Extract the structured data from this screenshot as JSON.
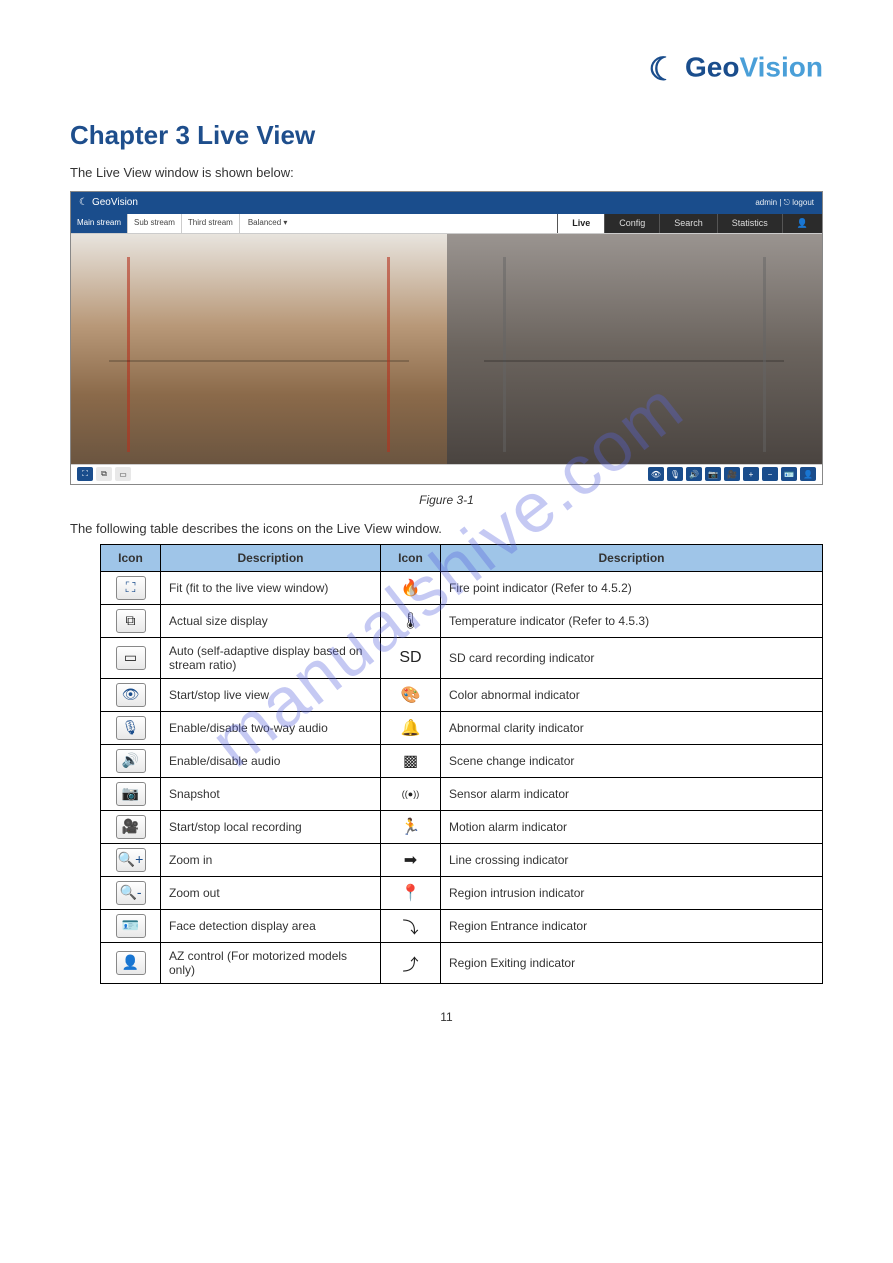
{
  "brand": {
    "geo": "Geo",
    "vision": "Vision",
    "glyph": "☾"
  },
  "chapter_title": "Chapter 3  Live View",
  "intro_text": "The Live View window is shown below:",
  "figure_caption": "Figure 3-1",
  "table_intro": "The following table describes the icons on the Live View window.",
  "screenshot": {
    "titlebar_brand": "GeoVision",
    "titlebar_right": "admin  |  ⎋  logout",
    "stream_tabs": [
      "Main stream",
      "Sub stream",
      "Third stream"
    ],
    "balanced": "Balanced ▾",
    "nav_tabs": [
      "Live",
      "Config",
      "Search",
      "Statistics"
    ],
    "person_icon": "👤"
  },
  "table": {
    "headers": [
      "Icon",
      "Description",
      "Icon",
      "Description"
    ],
    "rows": [
      {
        "icon1_glyph": "⛶",
        "icon1_class": "",
        "desc1": "Fit (fit to the live view window)",
        "icon2_glyph": "🔥",
        "icon2_class": "plain",
        "desc2": "Fire point indicator (Refer to 4.5.2)"
      },
      {
        "icon1_glyph": "⧉",
        "icon1_class": "dark",
        "desc1": "Actual size display",
        "icon2_glyph": "🌡",
        "icon2_class": "plain",
        "desc2": "Temperature indicator (Refer to 4.5.3)"
      },
      {
        "icon1_glyph": "▭",
        "icon1_class": "dark",
        "desc1": "Auto (self-adaptive display based on stream ratio)",
        "icon2_glyph": "SD",
        "icon2_class": "plain",
        "desc2": "SD card recording indicator"
      },
      {
        "icon1_glyph": "👁",
        "icon1_class": "",
        "desc1": "Start/stop live view",
        "icon2_glyph": "🎨",
        "icon2_class": "plain",
        "desc2": "Color abnormal indicator"
      },
      {
        "icon1_glyph": "🎙",
        "icon1_class": "",
        "desc1": "Enable/disable two-way audio",
        "icon2_glyph": "🔔",
        "icon2_class": "plain",
        "desc2": "Abnormal clarity indicator"
      },
      {
        "icon1_glyph": "🔊",
        "icon1_class": "",
        "desc1": "Enable/disable audio",
        "icon2_glyph": "▩",
        "icon2_class": "plain",
        "desc2": "Scene change indicator"
      },
      {
        "icon1_glyph": "📷",
        "icon1_class": "",
        "desc1": "Snapshot",
        "icon2_glyph": "((●))",
        "icon2_class": "plain",
        "desc2": "Sensor alarm indicator"
      },
      {
        "icon1_glyph": "🎥",
        "icon1_class": "",
        "desc1": "Start/stop local recording",
        "icon2_glyph": "🏃",
        "icon2_class": "plain",
        "desc2": "Motion alarm indicator"
      },
      {
        "icon1_glyph": "🔍+",
        "icon1_class": "",
        "desc1": "Zoom in",
        "icon2_glyph": "➡",
        "icon2_class": "plain",
        "desc2": "Line crossing indicator"
      },
      {
        "icon1_glyph": "🔍-",
        "icon1_class": "",
        "desc1": "Zoom out",
        "icon2_glyph": "📍",
        "icon2_class": "plain",
        "desc2": "Region intrusion indicator"
      },
      {
        "icon1_glyph": "🪪",
        "icon1_class": "",
        "desc1": "Face detection display area",
        "icon2_glyph": "⤵",
        "icon2_class": "plain",
        "desc2": "Region Entrance indicator"
      },
      {
        "icon1_glyph": "👤",
        "icon1_class": "",
        "desc1": "AZ control (For motorized models only)",
        "icon2_glyph": "⤴",
        "icon2_class": "plain",
        "desc2": "Region Exiting indicator"
      }
    ]
  },
  "watermark": "manualshive.com",
  "page_number": "11",
  "colors": {
    "brand_blue": "#1a4d8c",
    "brand_light": "#4a9fd8",
    "table_header": "#9fc5e8",
    "text_main": "#333333"
  }
}
